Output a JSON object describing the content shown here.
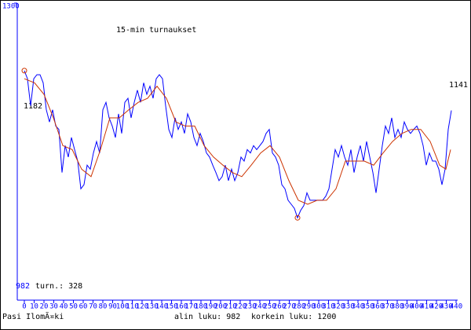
{
  "chart_data": {
    "type": "line",
    "title": "15-min turnaukset",
    "xlim": [
      0,
      440
    ],
    "ylim": [
      860,
      1300
    ],
    "xticks": [
      0,
      10,
      20,
      30,
      40,
      50,
      60,
      70,
      80,
      90,
      100,
      110,
      120,
      130,
      140,
      150,
      160,
      170,
      180,
      190,
      200,
      210,
      220,
      230,
      240,
      250,
      260,
      270,
      280,
      290,
      300,
      310,
      320,
      330,
      340,
      350,
      360,
      370,
      380,
      390,
      400,
      410,
      420,
      430,
      440
    ],
    "yticks": [
      1300
    ],
    "series": [
      {
        "color": "#0000ff",
        "x": [
          0,
          3.2,
          6.4,
          9.6,
          12.8,
          16,
          19.2,
          22.4,
          25.6,
          28.8,
          32,
          35.2,
          38.4,
          41.6,
          44.8,
          48,
          51.2,
          54.4,
          57.6,
          60.8,
          64,
          67.2,
          70.4,
          73.6,
          76.8,
          80,
          83.2,
          86.4,
          89.6,
          92.8,
          96,
          99.2,
          102.4,
          105.6,
          108.8,
          112,
          115.2,
          118.4,
          121.6,
          124.8,
          128,
          131.2,
          134.4,
          137.6,
          140.8,
          144,
          147.2,
          150.4,
          153.6,
          156.8,
          160,
          163.2,
          166.4,
          169.6,
          172.8,
          176,
          179.2,
          182.4,
          185.6,
          188.8,
          192,
          195.2,
          198.4,
          201.6,
          204.8,
          208,
          211.2,
          214.4,
          217.6,
          220.8,
          224,
          227.2,
          230.4,
          233.6,
          236.8,
          240,
          243.2,
          246.4,
          249.6,
          252.8,
          256,
          259.2,
          262.4,
          265.6,
          268.8,
          272,
          275.2,
          278.4,
          281.6,
          284.8,
          288,
          291.2,
          294.4,
          297.6,
          300.8,
          304,
          307.2,
          310.4,
          313.6,
          316.8,
          320,
          323.2,
          326.4,
          329.6,
          332.8,
          336,
          339.2,
          342.4,
          345.6,
          348.8,
          352,
          355.2,
          358.4,
          361.6,
          364.8,
          368,
          371.2,
          374.4,
          377.6,
          380.8,
          384,
          387.2,
          390.4,
          393.6,
          396.8,
          400,
          403.2,
          406.4,
          409.6,
          412.8,
          416,
          419.2,
          422.4,
          425.6,
          428.8,
          432,
          435.2
        ],
        "values": [
          1200,
          1188,
          1148,
          1188,
          1194,
          1194,
          1182,
          1142,
          1124,
          1142,
          1118,
          1113,
          1049,
          1089,
          1072,
          1101,
          1083,
          1066,
          1025,
          1031,
          1060,
          1054,
          1078,
          1095,
          1078,
          1142,
          1153,
          1130,
          1118,
          1101,
          1136,
          1107,
          1153,
          1159,
          1130,
          1153,
          1171,
          1153,
          1182,
          1165,
          1177,
          1159,
          1188,
          1194,
          1188,
          1148,
          1113,
          1101,
          1130,
          1113,
          1124,
          1107,
          1136,
          1124,
          1101,
          1089,
          1107,
          1095,
          1078,
          1072,
          1060,
          1049,
          1037,
          1043,
          1060,
          1037,
          1054,
          1037,
          1049,
          1072,
          1066,
          1083,
          1078,
          1089,
          1083,
          1089,
          1095,
          1107,
          1113,
          1078,
          1072,
          1060,
          1031,
          1025,
          1008,
          1002,
          996,
          982,
          993,
          1000,
          1019,
          1008,
          1008,
          1008,
          1008,
          1008,
          1014,
          1025,
          1054,
          1083,
          1072,
          1089,
          1072,
          1060,
          1083,
          1049,
          1072,
          1089,
          1066,
          1095,
          1072,
          1049,
          1019,
          1054,
          1089,
          1118,
          1107,
          1130,
          1101,
          1113,
          1101,
          1124,
          1113,
          1107,
          1113,
          1118,
          1107,
          1089,
          1060,
          1078,
          1066,
          1066,
          1054,
          1031,
          1054,
          1113,
          1141
        ]
      },
      {
        "color": "#cc3300",
        "x": [
          0,
          10.4,
          20,
          29.6,
          39.2,
          48.8,
          58.4,
          68,
          77.6,
          87.2,
          96.8,
          106.4,
          116,
          125.6,
          135.2,
          144.8,
          154.4,
          164,
          173.6,
          183.2,
          192.8,
          202.4,
          212,
          221.6,
          231.2,
          240.8,
          250.4,
          260,
          269.6,
          279.2,
          288.8,
          298.4,
          308,
          317.6,
          327.2,
          336.8,
          346.4,
          356,
          365.6,
          375.2,
          384.8,
          394.4,
          404,
          413.6,
          423.2,
          429.6,
          434.4
        ],
        "values": [
          1188,
          1182,
          1165,
          1130,
          1089,
          1083,
          1054,
          1043,
          1083,
          1130,
          1130,
          1142,
          1153,
          1159,
          1177,
          1159,
          1124,
          1118,
          1118,
          1089,
          1072,
          1060,
          1049,
          1043,
          1060,
          1078,
          1089,
          1072,
          1037,
          1008,
          1002,
          1008,
          1008,
          1025,
          1066,
          1066,
          1066,
          1060,
          1078,
          1095,
          1107,
          1113,
          1113,
          1095,
          1060,
          1054,
          1083
        ]
      }
    ],
    "annotations": [
      "982",
      "turn.: 328",
      "1182",
      "1141"
    ],
    "footer": [
      "Pasi IlomÃ¤ki",
      "alin luku: 982",
      "korkein luku: 1200"
    ]
  }
}
